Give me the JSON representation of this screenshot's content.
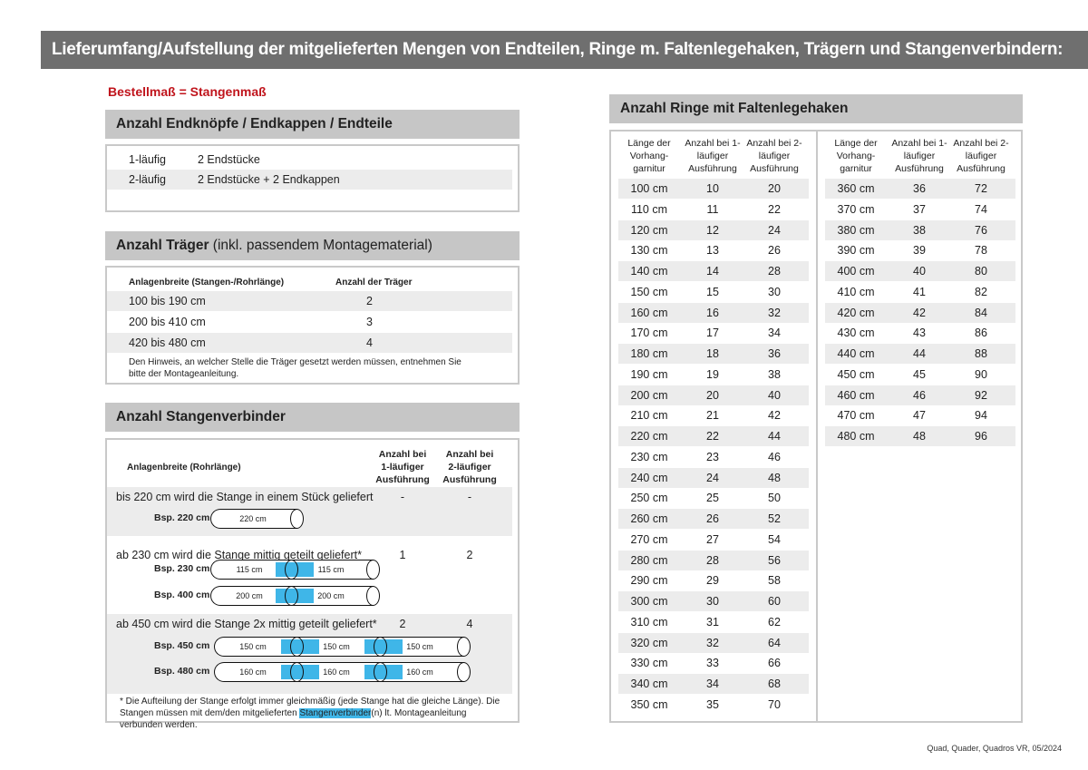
{
  "title": "Lieferumfang/Aufstellung der mitgelieferten Mengen von Endteilen, Ringe m. Faltenlegehaken, Trägern und Stangenverbindern:",
  "subtitle": "Bestellmaß = Stangenmaß",
  "endteile": {
    "heading": "Anzahl Endknöpfe / Endkappen / Endteile",
    "rows": [
      {
        "label": "1-läufig",
        "value": "2 Endstücke"
      },
      {
        "label": "2-läufig",
        "value": "2 Endstücke + 2 Endkappen"
      }
    ]
  },
  "traeger": {
    "heading_bold": "Anzahl Träger",
    "heading_rest": " (inkl. passendem Montagematerial)",
    "col1": "Anlagenbreite (Stangen-/Rohrlänge)",
    "col2": "Anzahl der Träger",
    "rows": [
      {
        "range": "100 bis 190 cm",
        "count": "2"
      },
      {
        "range": "200 bis 410 cm",
        "count": "3"
      },
      {
        "range": "420 bis 480 cm",
        "count": "4"
      }
    ],
    "note": "Den Hinweis, an welcher Stelle die Träger gesetzt werden müssen, entnehmen Sie bitte der Montageanleitung."
  },
  "verbinder": {
    "heading": "Anzahl Stangenverbinder",
    "col1": "Anlagenbreite (Rohrlänge)",
    "col2": "Anzahl bei 1-läufiger Ausführung",
    "col3": "Anzahl bei 2-läufiger Ausführung",
    "groups": [
      {
        "text": "bis 220 cm wird die Stange in einem Stück geliefert",
        "v1": "-",
        "v2": "-",
        "examples": [
          {
            "label": "Bsp. 220 cm",
            "parts": [
              "220 cm"
            ]
          }
        ]
      },
      {
        "text": "ab 230 cm wird die Stange mittig geteilt geliefert*",
        "v1": "1",
        "v2": "2",
        "examples": [
          {
            "label": "Bsp. 230 cm",
            "parts": [
              "115 cm",
              "115 cm"
            ]
          },
          {
            "label": "Bsp. 400 cm",
            "parts": [
              "200 cm",
              "200 cm"
            ]
          }
        ]
      },
      {
        "text": "ab 450 cm wird die Stange 2x mittig geteilt geliefert*",
        "v1": "2",
        "v2": "4",
        "examples": [
          {
            "label": "Bsp. 450 cm",
            "parts": [
              "150 cm",
              "150 cm",
              "150 cm"
            ]
          },
          {
            "label": "Bsp. 480 cm",
            "parts": [
              "160 cm",
              "160 cm",
              "160 cm"
            ]
          }
        ]
      }
    ],
    "foot_a": "* Die Aufteilung der Stange erfolgt immer gleichmäßig (jede Stange hat die gleiche Länge). Die Stangen müssen mit dem/den mitgelieferten ",
    "foot_hl": "Stangenverbinder",
    "foot_b": "(n) lt. Montageanleitung verbunden werden."
  },
  "ringe": {
    "heading": "Anzahl Ringe mit Faltenlegehaken",
    "headers": [
      "Länge der Vorhang- garnitur",
      "Anzahl bei 1-läufiger Ausführung",
      "Anzahl bei 2-läufiger Ausführung"
    ],
    "left": [
      [
        "100 cm",
        "10",
        "20"
      ],
      [
        "110 cm",
        "11",
        "22"
      ],
      [
        "120 cm",
        "12",
        "24"
      ],
      [
        "130 cm",
        "13",
        "26"
      ],
      [
        "140 cm",
        "14",
        "28"
      ],
      [
        "150 cm",
        "15",
        "30"
      ],
      [
        "160 cm",
        "16",
        "32"
      ],
      [
        "170 cm",
        "17",
        "34"
      ],
      [
        "180 cm",
        "18",
        "36"
      ],
      [
        "190 cm",
        "19",
        "38"
      ],
      [
        "200 cm",
        "20",
        "40"
      ],
      [
        "210 cm",
        "21",
        "42"
      ],
      [
        "220 cm",
        "22",
        "44"
      ],
      [
        "230 cm",
        "23",
        "46"
      ],
      [
        "240 cm",
        "24",
        "48"
      ],
      [
        "250 cm",
        "25",
        "50"
      ],
      [
        "260 cm",
        "26",
        "52"
      ],
      [
        "270 cm",
        "27",
        "54"
      ],
      [
        "280 cm",
        "28",
        "56"
      ],
      [
        "290 cm",
        "29",
        "58"
      ],
      [
        "300 cm",
        "30",
        "60"
      ],
      [
        "310 cm",
        "31",
        "62"
      ],
      [
        "320 cm",
        "32",
        "64"
      ],
      [
        "330 cm",
        "33",
        "66"
      ],
      [
        "340 cm",
        "34",
        "68"
      ],
      [
        "350 cm",
        "35",
        "70"
      ]
    ],
    "right": [
      [
        "360 cm",
        "36",
        "72"
      ],
      [
        "370 cm",
        "37",
        "74"
      ],
      [
        "380 cm",
        "38",
        "76"
      ],
      [
        "390 cm",
        "39",
        "78"
      ],
      [
        "400 cm",
        "40",
        "80"
      ],
      [
        "410 cm",
        "41",
        "82"
      ],
      [
        "420 cm",
        "42",
        "84"
      ],
      [
        "430 cm",
        "43",
        "86"
      ],
      [
        "440 cm",
        "44",
        "88"
      ],
      [
        "450 cm",
        "45",
        "90"
      ],
      [
        "460 cm",
        "46",
        "92"
      ],
      [
        "470 cm",
        "47",
        "94"
      ],
      [
        "480 cm",
        "48",
        "96"
      ]
    ]
  },
  "footer": "Quad, Quader, Quadros VR, 05/2024",
  "colors": {
    "header_bg": "#6f6f6f",
    "section_bg": "#c6c6c6",
    "accent_red": "#c0141c",
    "connector_blue": "#3fb6e8"
  }
}
